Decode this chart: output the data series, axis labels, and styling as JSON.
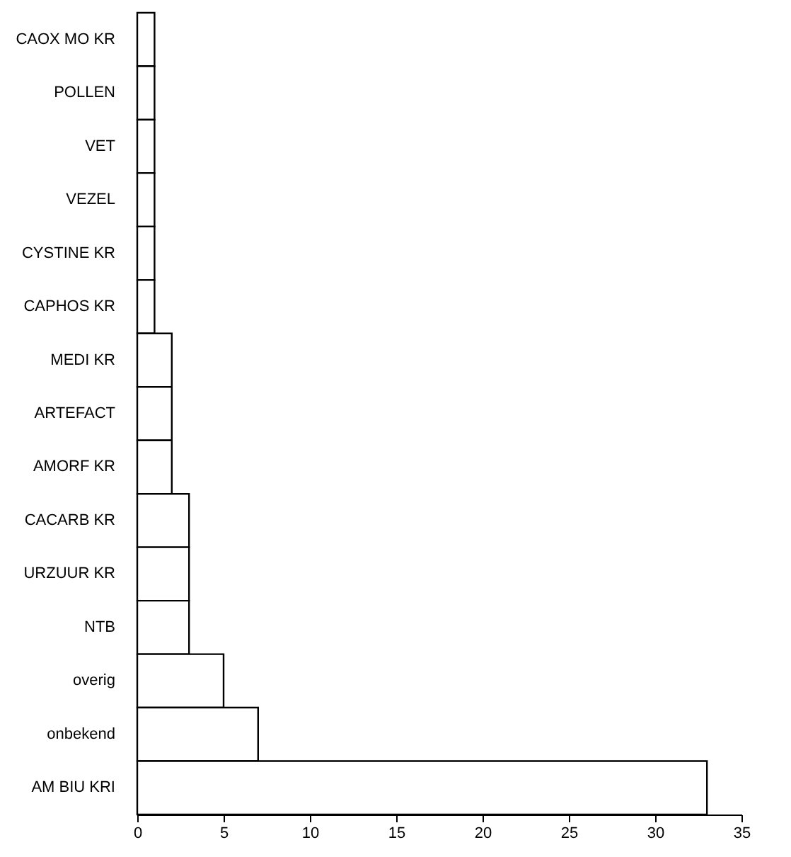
{
  "chart_data": {
    "type": "bar",
    "orientation": "horizontal",
    "categories": [
      "CAOX MO KR",
      "POLLEN",
      "VET",
      "VEZEL",
      "CYSTINE KR",
      "CAPHOS KR",
      "MEDI KR",
      "ARTEFACT",
      "AMORF KR",
      "CACARB KR",
      "URZUUR KR",
      "NTB",
      "overig",
      "onbekend",
      "AM BIU KRI"
    ],
    "values": [
      1,
      1,
      1,
      1,
      1,
      1,
      2,
      2,
      2,
      3,
      3,
      3,
      5,
      7,
      33
    ],
    "color": "#ffffff",
    "xlim": [
      0,
      35
    ],
    "xticks": [
      0,
      5,
      10,
      15,
      20,
      25,
      30,
      35
    ],
    "grid": false
  }
}
